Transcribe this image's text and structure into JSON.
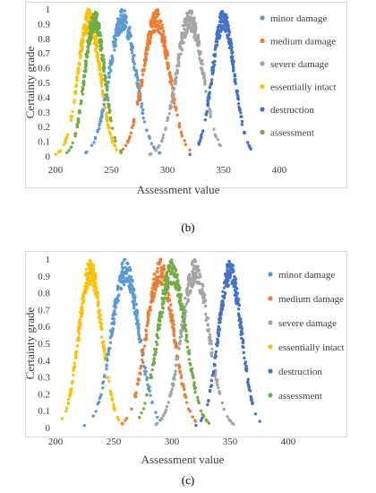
{
  "captions": {
    "b": "(b)",
    "c": "(c)"
  },
  "colors": {
    "minor damage": "#5b9bd5",
    "medium damage": "#ed7d31",
    "severe damage": "#a5a5a5",
    "essentially intact": "#ffc000",
    "destruction": "#4472c4",
    "assessment": "#70ad47"
  },
  "chart_data": [
    {
      "panel": "b",
      "type": "scatter",
      "xlabel": "Assessment value",
      "ylabel": "Certainty grade",
      "xlim": [
        200,
        400
      ],
      "ylim": [
        0,
        1
      ],
      "xticks": [
        200,
        250,
        300,
        350,
        400
      ],
      "yticks": [
        0,
        0.1,
        0.2,
        0.3,
        0.4,
        0.5,
        0.6,
        0.7,
        0.8,
        0.9,
        1
      ],
      "legend_position": "right",
      "series": [
        {
          "name": "minor damage",
          "center": 260,
          "spread": 12,
          "peak": 1
        },
        {
          "name": "medium damage",
          "center": 290,
          "spread": 12,
          "peak": 1
        },
        {
          "name": "severe damage",
          "center": 320,
          "spread": 12,
          "peak": 1
        },
        {
          "name": "essentially intact",
          "center": 230,
          "spread": 10,
          "peak": 1
        },
        {
          "name": "destruction",
          "center": 350,
          "spread": 10,
          "peak": 1
        },
        {
          "name": "assessment",
          "center": 235,
          "spread": 9,
          "peak": 1
        }
      ]
    },
    {
      "panel": "c",
      "type": "scatter",
      "xlabel": "Assessment value",
      "ylabel": "Certainty grade",
      "xlim": [
        200,
        400
      ],
      "ylim": [
        0,
        1
      ],
      "xticks": [
        200,
        250,
        300,
        350,
        400
      ],
      "yticks": [
        0,
        0.1,
        0.2,
        0.3,
        0.4,
        0.5,
        0.6,
        0.7,
        0.8,
        0.9,
        1
      ],
      "legend_position": "right",
      "series": [
        {
          "name": "minor damage",
          "center": 260,
          "spread": 12,
          "peak": 1
        },
        {
          "name": "medium damage",
          "center": 290,
          "spread": 12,
          "peak": 1
        },
        {
          "name": "severe damage",
          "center": 320,
          "spread": 12,
          "peak": 1
        },
        {
          "name": "essentially intact",
          "center": 230,
          "spread": 10,
          "peak": 1
        },
        {
          "name": "destruction",
          "center": 350,
          "spread": 10,
          "peak": 1
        },
        {
          "name": "assessment",
          "center": 300,
          "spread": 12,
          "peak": 1
        }
      ]
    }
  ]
}
